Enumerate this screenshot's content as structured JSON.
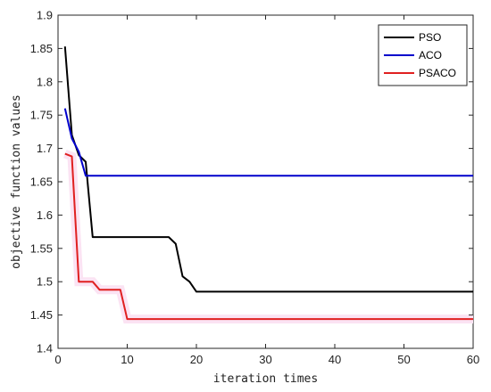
{
  "chart_data": {
    "type": "line",
    "title": "",
    "xlabel": "iteration times",
    "ylabel": "objective function values",
    "xlim": [
      0,
      60
    ],
    "ylim": [
      1.4,
      1.9
    ],
    "xticks": [
      "0",
      "10",
      "20",
      "30",
      "40",
      "50",
      "60"
    ],
    "yticks": [
      "1.4",
      "1.45",
      "1.5",
      "1.55",
      "1.6",
      "1.65",
      "1.7",
      "1.75",
      "1.8",
      "1.85",
      "1.9"
    ],
    "grid": false,
    "legend_position": "top-right",
    "series": [
      {
        "name": "PSO",
        "color": "#000000",
        "points": [
          [
            1,
            1.853
          ],
          [
            2,
            1.72
          ],
          [
            3,
            1.69
          ],
          [
            4,
            1.68
          ],
          [
            5,
            1.567
          ],
          [
            16,
            1.567
          ],
          [
            17,
            1.557
          ],
          [
            18,
            1.508
          ],
          [
            19,
            1.5
          ],
          [
            20,
            1.485
          ],
          [
            60,
            1.485
          ]
        ]
      },
      {
        "name": "ACO",
        "color": "#0000cc",
        "points": [
          [
            1,
            1.76
          ],
          [
            2,
            1.715
          ],
          [
            3,
            1.695
          ],
          [
            4,
            1.659
          ],
          [
            60,
            1.659
          ]
        ]
      },
      {
        "name": "PSACO",
        "color": "#e02020",
        "points": [
          [
            1,
            1.692
          ],
          [
            2,
            1.688
          ],
          [
            3,
            1.5
          ],
          [
            5,
            1.5
          ],
          [
            6,
            1.488
          ],
          [
            9,
            1.488
          ],
          [
            10,
            1.444
          ],
          [
            60,
            1.444
          ]
        ]
      }
    ]
  }
}
